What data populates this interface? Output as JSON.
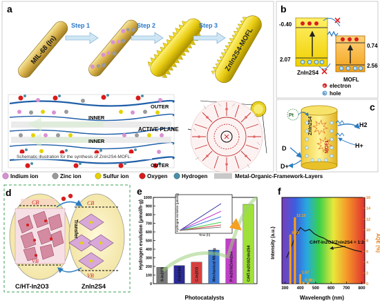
{
  "panel_a": {
    "label": "a",
    "rod_labels": [
      "MIL-68 (In)",
      "ZnIn2S4-MOFL"
    ],
    "steps": [
      "Step 1",
      "Step 2",
      "Step 3"
    ],
    "layer_labels": [
      "OUTER",
      "INNER",
      "INNER",
      "OUTER"
    ],
    "active_plane": "ACTIVE PLANE",
    "caption": "Schematic illustration for the synthesis of ZnIn2S4-MOFL."
  },
  "legend": {
    "items": [
      "Indium ion",
      "Zinc ion",
      "Sulfur ion",
      "Oxygen",
      "Hydrogen",
      "Metal-Organic-Framework-Layers"
    ],
    "colors": [
      "#d991d3",
      "#9a9a9a",
      "#e6d200",
      "#d81b1b",
      "#4a8fa8",
      "#c8c8c8"
    ]
  },
  "panel_b": {
    "label": "b",
    "left_top": "-0.40",
    "left_bottom": "2.07",
    "right_top": "0.74",
    "right_bottom": "2.56",
    "left_name": "ZnIn2S4",
    "right_name": "MOFL",
    "electron": "electron",
    "hole": "hole",
    "e_symbol": "e",
    "h_symbol": "h"
  },
  "panel_c": {
    "label": "c",
    "pt": "Pt",
    "h2": "H2",
    "h_plus": "H+",
    "d": "D",
    "d_plus": "D+",
    "rod_text": [
      "ZnIn2S4",
      "MOFL"
    ]
  },
  "panel_d": {
    "label": "d",
    "cb": "CB",
    "vb": "VB",
    "transfer": "Transfer",
    "left_name": "C/HT-In2O3",
    "right_name": "ZnIn2S4"
  },
  "panel_e": {
    "label": "e",
    "xlabel": "Photocatalysts",
    "ylabel": "Hydrogen evolution (μmol/h·g)",
    "inset_xlabel": "Time (h)",
    "inset_ylabel": "Hydrogen evolution (μmol/g)"
  },
  "panel_f": {
    "label": "f",
    "xlabel": "Wavelength (nm)",
    "ylabel_left": "Intensity (a.u.)",
    "ylabel_right": "AQE (%)",
    "annotation": "C/HT-In2O3/ZnIn2S4 = 1:2"
  },
  "chart_data": [
    {
      "type": "bar",
      "panel": "e",
      "categories": [
        "S-In2O3",
        "ZnIn2S4",
        "C-In2O3",
        "Mechanical Mixing",
        "P-In2O3/ZnIn2S4",
        "C/HT-In2O3/ZnIn2S4"
      ],
      "values": [
        190,
        210,
        250,
        390,
        520,
        920
      ],
      "colors": [
        "#7a7a7a",
        "#2a2a9a",
        "#d84040",
        "#3a7ad8",
        "#c040c8",
        "#a0e03a"
      ],
      "xlabel": "Photocatalysts",
      "ylabel": "Hydrogen evolution (μmol/h·g)",
      "ylim": [
        0,
        1000
      ],
      "yticks": [
        0,
        100,
        200,
        300,
        400,
        500,
        600,
        700,
        800,
        900,
        1000
      ]
    },
    {
      "type": "line",
      "panel": "f",
      "x": [
        310,
        340,
        370,
        400,
        430,
        460,
        490,
        520,
        550,
        600,
        650,
        700,
        750,
        800
      ],
      "series": [
        {
          "name": "",
          "values": [
            0.3,
            0.42,
            0.56,
            0.65,
            0.61,
            0.63,
            0.58,
            0.55,
            0.53,
            0.48,
            0.45,
            0.42,
            0.39,
            0.37
          ]
        }
      ],
      "aqe_bars": [
        {
          "x": 335,
          "value": 8.93,
          "label": "8.93"
        },
        {
          "x": 365,
          "value": 12.15,
          "label": "12.15"
        },
        {
          "x": 400,
          "value": 1.57,
          "label": "1.57"
        },
        {
          "x": 420,
          "value": 0.19,
          "label": "0.19"
        },
        {
          "x": 450,
          "value": 0.1,
          "label": "0.1"
        }
      ],
      "xlabel": "Wavelength (nm)",
      "ylabel": "Intensity (a.u.)",
      "y2label": "AQE (%)",
      "xlim": [
        280,
        820
      ],
      "xticks": [
        300,
        400,
        500,
        600,
        700,
        800
      ],
      "y2lim": [
        0,
        16
      ],
      "y2ticks": [
        0,
        2,
        4,
        6,
        8,
        10,
        12,
        14,
        16
      ]
    }
  ]
}
